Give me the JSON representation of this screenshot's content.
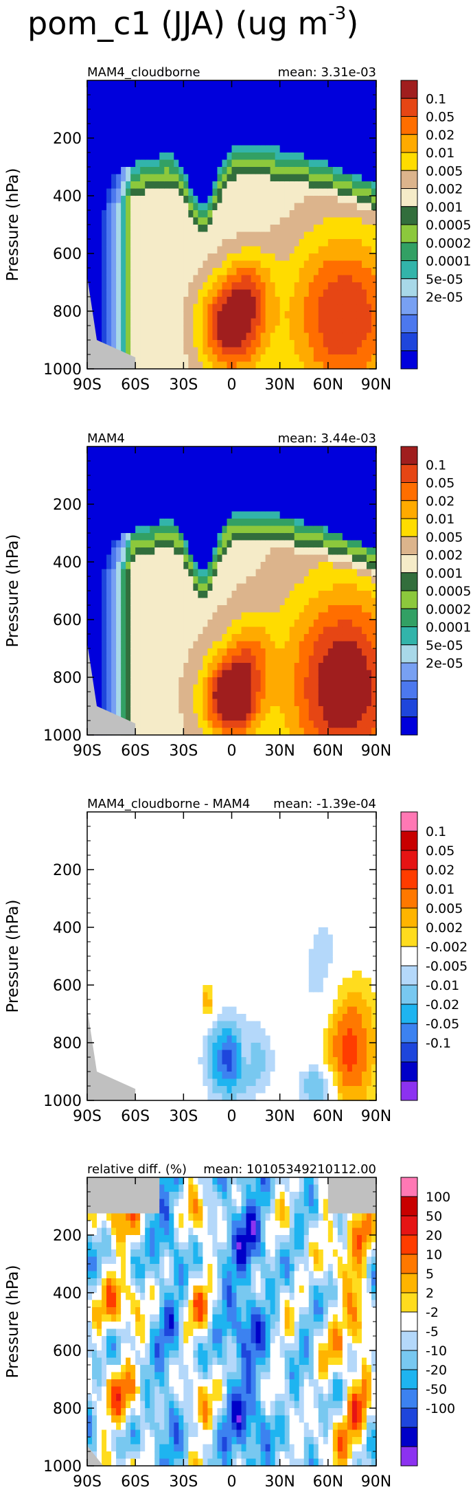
{
  "figure_title": "pom_c1 (JJA) (ug m",
  "figure_title_exp": "-3",
  "figure_title_close": ")",
  "colors": {
    "missing": "#c0c0c0",
    "abs_levels": [
      "#0000dc",
      "#1e46dc",
      "#4c78ee",
      "#78a0f2",
      "#a8d8e8",
      "#32b4aa",
      "#32a064",
      "#8cc83c",
      "#326e3c",
      "#f5ebc8",
      "#dcb48c",
      "#ffdc00",
      "#ffaa00",
      "#ff6e00",
      "#e64614",
      "#a01e1e"
    ],
    "diff_levels": [
      "#8c32f0",
      "#0000c8",
      "#1e46dc",
      "#3c82f0",
      "#1eb4f0",
      "#78c8f0",
      "#b4d8fa",
      "#ffffff",
      "#ffdc1e",
      "#ffb400",
      "#ff7800",
      "#ff3c00",
      "#e61414",
      "#c80000",
      "#ff78b4"
    ]
  },
  "chart_data": [
    {
      "type": "heatmap",
      "panel": 1,
      "left_label": "MAM4_cloudborne",
      "right_label": "mean: 3.31e-03",
      "xlabel": "",
      "ylabel": "Pressure (hPa)",
      "x_ticks": [
        "90S",
        "60S",
        "30S",
        "0",
        "30N",
        "60N",
        "90N"
      ],
      "x_range": [
        -90,
        90
      ],
      "y_ticks": [
        "200",
        "400",
        "600",
        "800",
        "1000"
      ],
      "y_range": [
        0,
        1000
      ],
      "y_reversed": true,
      "colorbar_labels": [
        "0.1",
        "0.05",
        "0.02",
        "0.01",
        "0.005",
        "0.002",
        "0.001",
        "0.0005",
        "0.0002",
        "0.0001",
        "5e-05",
        "2e-05"
      ],
      "field": "abs",
      "pattern": {
        "top_base": 360,
        "top_amp": 140,
        "dip_lat": -18,
        "dip_width": 8,
        "dip_depth": 200,
        "interior": 0.0,
        "hot_spots": [
          [
            0,
            850,
            0.85,
            14,
            120
          ],
          [
            70,
            820,
            0.7,
            26,
            220
          ],
          [
            12,
            700,
            0.3,
            10,
            90
          ]
        ]
      }
    },
    {
      "type": "heatmap",
      "panel": 2,
      "left_label": "MAM4",
      "right_label": "mean: 3.44e-03",
      "xlabel": "",
      "ylabel": "Pressure (hPa)",
      "x_ticks": [
        "90S",
        "60S",
        "30S",
        "0",
        "30N",
        "60N",
        "90N"
      ],
      "x_range": [
        -90,
        90
      ],
      "y_ticks": [
        "200",
        "400",
        "600",
        "800",
        "1000"
      ],
      "y_range": [
        0,
        1000
      ],
      "y_reversed": true,
      "colorbar_labels": [
        "0.1",
        "0.05",
        "0.02",
        "0.01",
        "0.005",
        "0.002",
        "0.001",
        "0.0005",
        "0.0002",
        "0.0001",
        "5e-05",
        "2e-05"
      ],
      "field": "abs",
      "pattern": {
        "top_base": 360,
        "top_amp": 140,
        "dip_lat": -18,
        "dip_width": 8,
        "dip_depth": 200,
        "interior": 0.05,
        "hot_spots": [
          [
            0,
            870,
            0.95,
            12,
            100
          ],
          [
            70,
            830,
            0.8,
            26,
            240
          ],
          [
            12,
            700,
            0.3,
            10,
            90
          ]
        ]
      }
    },
    {
      "type": "heatmap",
      "panel": 3,
      "left_label": "MAM4_cloudborne - MAM4",
      "right_label": "mean: -1.39e-04",
      "xlabel": "",
      "ylabel": "Pressure (hPa)",
      "x_ticks": [
        "90S",
        "60S",
        "30S",
        "0",
        "30N",
        "60N",
        "90N"
      ],
      "x_range": [
        -90,
        90
      ],
      "y_ticks": [
        "200",
        "400",
        "600",
        "800",
        "1000"
      ],
      "y_range": [
        0,
        1000
      ],
      "y_reversed": true,
      "colorbar_labels": [
        "0.1",
        "0.05",
        "0.02",
        "0.01",
        "0.005",
        "0.002",
        "-0.002",
        "-0.005",
        "-0.01",
        "-0.02",
        "-0.05",
        "-0.1"
      ],
      "field": "diff",
      "pattern": {
        "blobs": [
          [
            -2,
            860,
            -0.8,
            9,
            90
          ],
          [
            8,
            850,
            0.4,
            4,
            60
          ],
          [
            -15,
            660,
            0.35,
            3,
            40
          ],
          [
            15,
            860,
            -0.3,
            8,
            80
          ],
          [
            72,
            820,
            0.7,
            12,
            160
          ],
          [
            55,
            950,
            -0.5,
            8,
            50
          ],
          [
            58,
            620,
            -0.25,
            10,
            200
          ]
        ]
      }
    },
    {
      "type": "heatmap",
      "panel": 4,
      "left_label": "relative diff. (%)",
      "right_label": "mean: 10105349210112.00",
      "xlabel": "",
      "ylabel": "Pressure (hPa)",
      "x_ticks": [
        "90S",
        "60S",
        "30S",
        "0",
        "30N",
        "60N",
        "90N"
      ],
      "x_range": [
        -90,
        90
      ],
      "y_ticks": [
        "200",
        "400",
        "600",
        "800",
        "1000"
      ],
      "y_range": [
        0,
        1000
      ],
      "y_reversed": true,
      "colorbar_labels": [
        "100",
        "50",
        "20",
        "10",
        "5",
        "2",
        "-2",
        "-5",
        "-10",
        "-20",
        "-50",
        "-100"
      ],
      "field": "rel",
      "pattern": {
        "bands": [
          [
            -70,
            12,
            0.8
          ],
          [
            -20,
            8,
            0.7
          ],
          [
            -40,
            6,
            -0.3
          ],
          [
            10,
            10,
            -0.5
          ],
          [
            30,
            8,
            0.4
          ],
          [
            65,
            10,
            0.6
          ],
          [
            80,
            6,
            0.8
          ]
        ]
      }
    }
  ]
}
